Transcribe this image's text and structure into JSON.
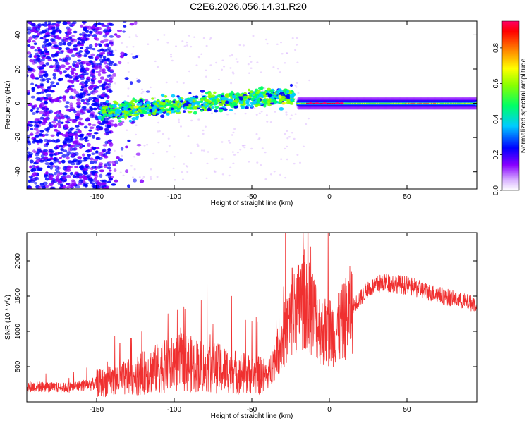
{
  "title": "C2E6.2026.056.14.31.R20",
  "colors": {
    "snr_line": "#f03030",
    "axis": "#000000",
    "background": "#ffffff"
  },
  "chart_data": [
    {
      "type": "heatmap",
      "name": "spectrogram",
      "xlabel": "Height of straight line (km)",
      "ylabel": "Frequency (Hz)",
      "xlim": [
        -195,
        95
      ],
      "ylim": [
        -50,
        48
      ],
      "xticks": [
        -150,
        -100,
        -50,
        0,
        50
      ],
      "yticks": [
        -40,
        -20,
        0,
        20,
        40
      ],
      "colorbar": {
        "label": "Normalized spectral amplitude",
        "range": [
          0.0,
          0.95
        ],
        "ticks": [
          0.0,
          0.2,
          0.4,
          0.6,
          0.8
        ],
        "colormap": [
          "#ffffff",
          "#cc99ff",
          "#7700ff",
          "#0000ff",
          "#00ffff",
          "#00ff00",
          "#ffff00",
          "#ff8800",
          "#ff0000",
          "#ff0066"
        ]
      },
      "features": {
        "noise_region_x": [
          -195,
          -145
        ],
        "scattered_burst_x": [
          -145,
          -25
        ],
        "scattered_burst_center_hz_start": -5,
        "scattered_burst_center_hz_end": 5,
        "steady_band_x": [
          -20,
          95
        ],
        "steady_band_center_hz": 0,
        "peak_amplitude_x": [
          -15,
          10
        ]
      }
    },
    {
      "type": "line",
      "name": "snr",
      "xlabel": "Height of straight line (km)",
      "ylabel": "SNR (10 * v/v)",
      "xlim": [
        -195,
        95
      ],
      "ylim": [
        0,
        2400
      ],
      "xticks": [
        -150,
        -100,
        -50,
        0,
        50
      ],
      "yticks": [
        500,
        1000,
        1500,
        2000
      ],
      "profile": [
        {
          "x": -195,
          "y": 220
        },
        {
          "x": -170,
          "y": 200
        },
        {
          "x": -150,
          "y": 260
        },
        {
          "x": -130,
          "y": 340
        },
        {
          "x": -110,
          "y": 480
        },
        {
          "x": -95,
          "y": 560
        },
        {
          "x": -80,
          "y": 500
        },
        {
          "x": -65,
          "y": 450
        },
        {
          "x": -50,
          "y": 380
        },
        {
          "x": -40,
          "y": 360
        },
        {
          "x": -30,
          "y": 900
        },
        {
          "x": -22,
          "y": 1300
        },
        {
          "x": -15,
          "y": 1500
        },
        {
          "x": -5,
          "y": 1000
        },
        {
          "x": 5,
          "y": 1000
        },
        {
          "x": 15,
          "y": 1350
        },
        {
          "x": 25,
          "y": 1600
        },
        {
          "x": 35,
          "y": 1700
        },
        {
          "x": 50,
          "y": 1650
        },
        {
          "x": 70,
          "y": 1520
        },
        {
          "x": 95,
          "y": 1380
        }
      ],
      "peaks": [
        {
          "x": -24,
          "y": 1900
        },
        {
          "x": -17,
          "y": 2400
        },
        {
          "x": -12,
          "y": 2200
        },
        {
          "x": -98,
          "y": 1300
        },
        {
          "x": -104,
          "y": 1250
        },
        {
          "x": -75,
          "y": 1100
        },
        {
          "x": -128,
          "y": 900
        },
        {
          "x": -135,
          "y": 830
        }
      ]
    }
  ]
}
